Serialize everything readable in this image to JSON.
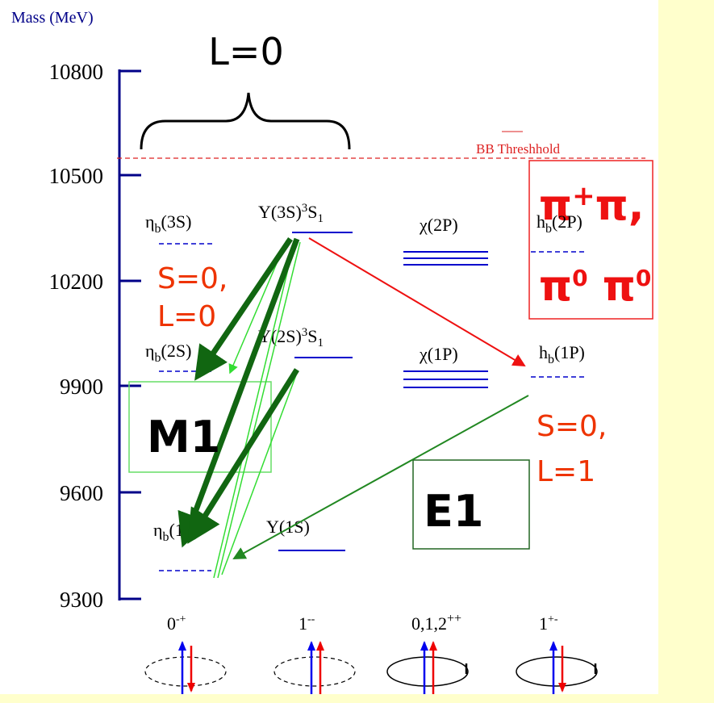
{
  "axis": {
    "label": "Mass (MeV)",
    "ticks": [
      "10800",
      "10500",
      "10200",
      "9900",
      "9600",
      "9300"
    ]
  },
  "header": {
    "title": "L=0"
  },
  "threshold": {
    "label": "BB Threshhold"
  },
  "decay_box": {
    "line1": [
      "π",
      "+",
      "π,"
    ],
    "line2": [
      "π",
      "0",
      " π",
      "0"
    ]
  },
  "levels": [
    {
      "symbol": "η",
      "subscript": "b",
      "state": "(3S)"
    },
    {
      "name": "Υ(3S)",
      "superscript": "3",
      "term": "S",
      "term_subscript": "1"
    },
    {
      "name": "χ(2P)"
    },
    {
      "symbol": "h",
      "subscript": "b",
      "state": "(2P)"
    },
    {
      "symbol": "η",
      "subscript": "b",
      "state": "(2S)"
    },
    {
      "name": "Υ(2S)",
      "superscript": "3",
      "term": "S",
      "term_subscript": "1"
    },
    {
      "name": "χ(1P)"
    },
    {
      "symbol": "h",
      "subscript": "b",
      "state": "(1P)"
    },
    {
      "symbol": "η",
      "subscript": "b",
      "state": "(1S)"
    },
    {
      "name": "Υ(1S)"
    }
  ],
  "annotations": {
    "spin_s0l0": [
      "S=0,",
      "L=0"
    ],
    "spin_s0l1": [
      "S=0,",
      "L=1"
    ],
    "m1": "M1",
    "e1": "E1"
  },
  "quantum_numbers": [
    {
      "base": "0",
      "superscript": "-+"
    },
    {
      "base": "1",
      "superscript": "--"
    },
    {
      "base": "0,1,2",
      "superscript": "++"
    },
    {
      "base": "1",
      "superscript": "+-"
    }
  ]
}
